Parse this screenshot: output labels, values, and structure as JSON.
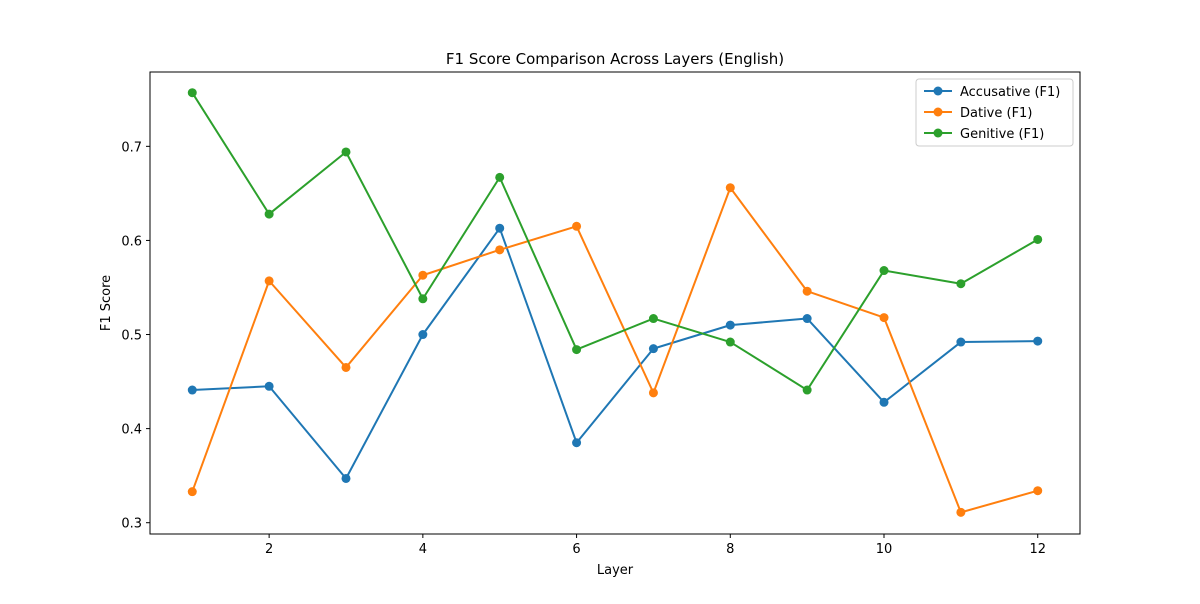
{
  "chart_data": {
    "type": "line",
    "title": "F1 Score Comparison Across Layers (English)",
    "xlabel": "Layer",
    "ylabel": "F1 Score",
    "x": [
      1,
      2,
      3,
      4,
      5,
      6,
      7,
      8,
      9,
      10,
      11,
      12
    ],
    "xlim": [
      0.45,
      12.55
    ],
    "ylim": [
      0.288,
      0.779
    ],
    "xticks": [
      2,
      4,
      6,
      8,
      10,
      12
    ],
    "yticks": [
      0.3,
      0.4,
      0.5,
      0.6,
      0.7
    ],
    "xtick_labels": [
      "2",
      "4",
      "6",
      "8",
      "10",
      "12"
    ],
    "ytick_labels": [
      "0.3",
      "0.4",
      "0.5",
      "0.6",
      "0.7"
    ],
    "grid": false,
    "legend_position": "top-right",
    "series": [
      {
        "name": "Accusative (F1)",
        "color": "#1f77b4",
        "values": [
          0.441,
          0.445,
          0.347,
          0.5,
          0.613,
          0.385,
          0.485,
          0.51,
          0.517,
          0.428,
          0.492,
          0.493
        ]
      },
      {
        "name": "Dative (F1)",
        "color": "#ff7f0e",
        "values": [
          0.333,
          0.557,
          0.465,
          0.563,
          0.59,
          0.615,
          0.438,
          0.656,
          0.546,
          0.518,
          0.311,
          0.334
        ]
      },
      {
        "name": "Genitive (F1)",
        "color": "#2ca02c",
        "values": [
          0.757,
          0.628,
          0.694,
          0.538,
          0.667,
          0.484,
          0.517,
          0.492,
          0.441,
          0.568,
          0.554,
          0.601
        ]
      }
    ]
  }
}
